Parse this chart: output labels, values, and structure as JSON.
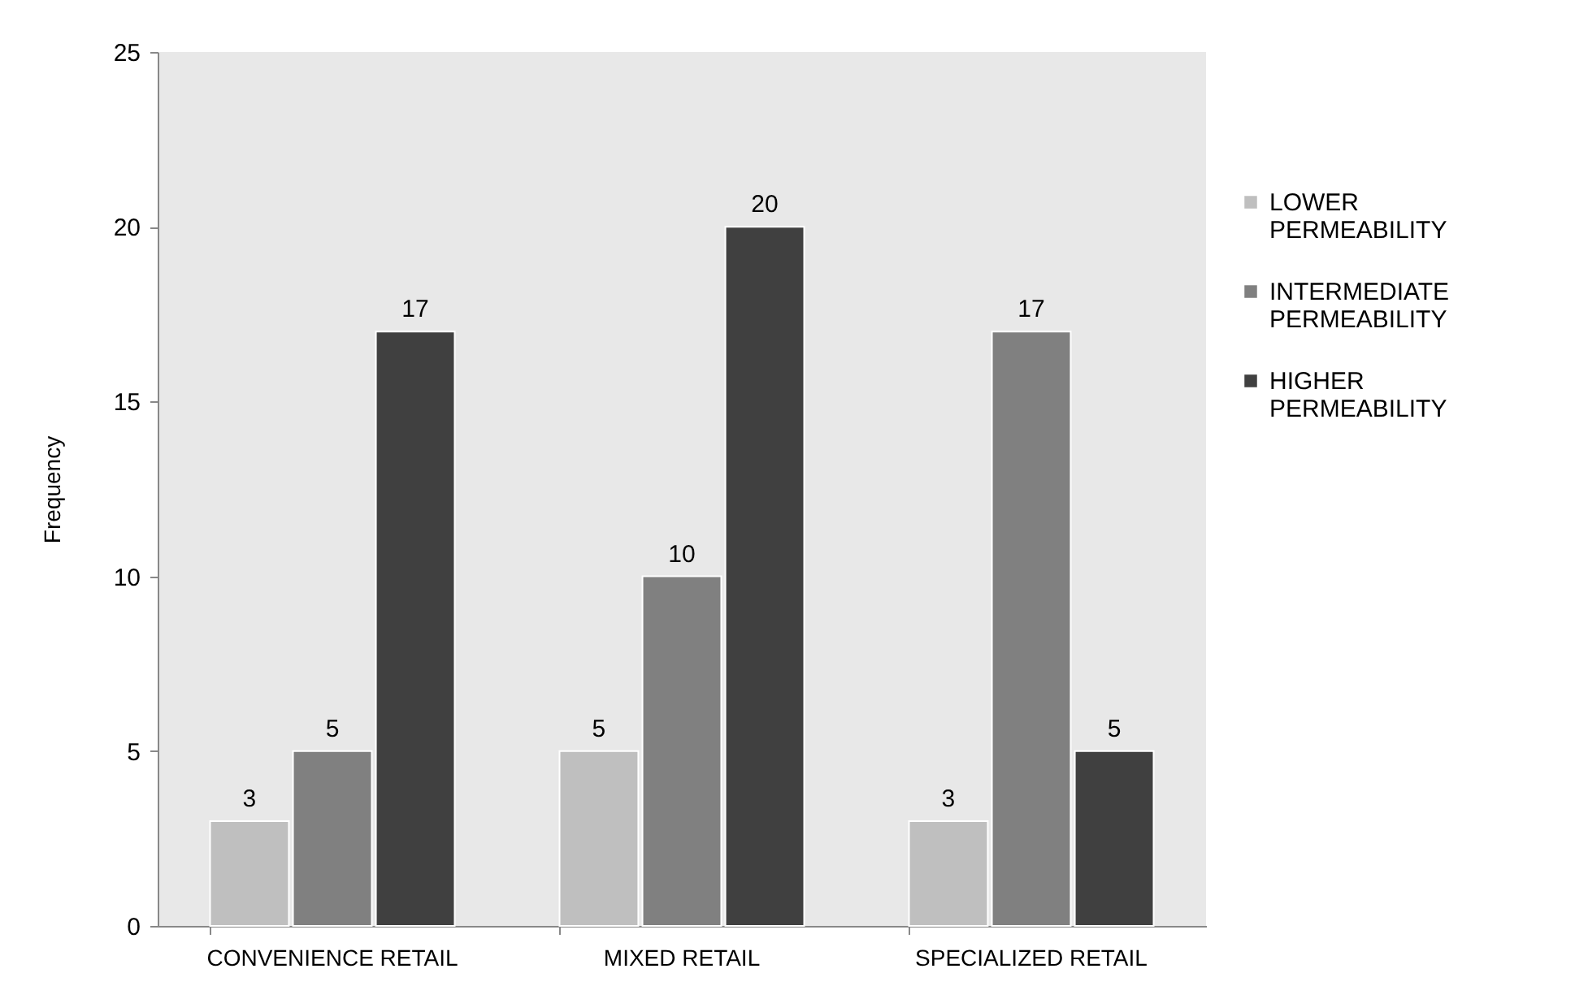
{
  "chart_data": {
    "type": "bar",
    "ylabel": "Frequency",
    "categories": [
      "CONVENIENCE RETAIL",
      "MIXED RETAIL",
      "SPECIALIZED RETAIL"
    ],
    "series": [
      {
        "name": "LOWER PERMEABILITY",
        "color": "#bfbfbf",
        "values": [
          3,
          5,
          3
        ]
      },
      {
        "name": "INTERMEDIATE PERMEABILITY",
        "color": "#808080",
        "values": [
          5,
          10,
          17
        ]
      },
      {
        "name": "HIGHER PERMEABILITY",
        "color": "#404040",
        "values": [
          17,
          20,
          5
        ]
      }
    ],
    "ylim": [
      0,
      25
    ],
    "yticks": [
      0,
      5,
      10,
      15,
      20,
      25
    ],
    "grid": false,
    "legend": "right",
    "data_labels": true
  }
}
